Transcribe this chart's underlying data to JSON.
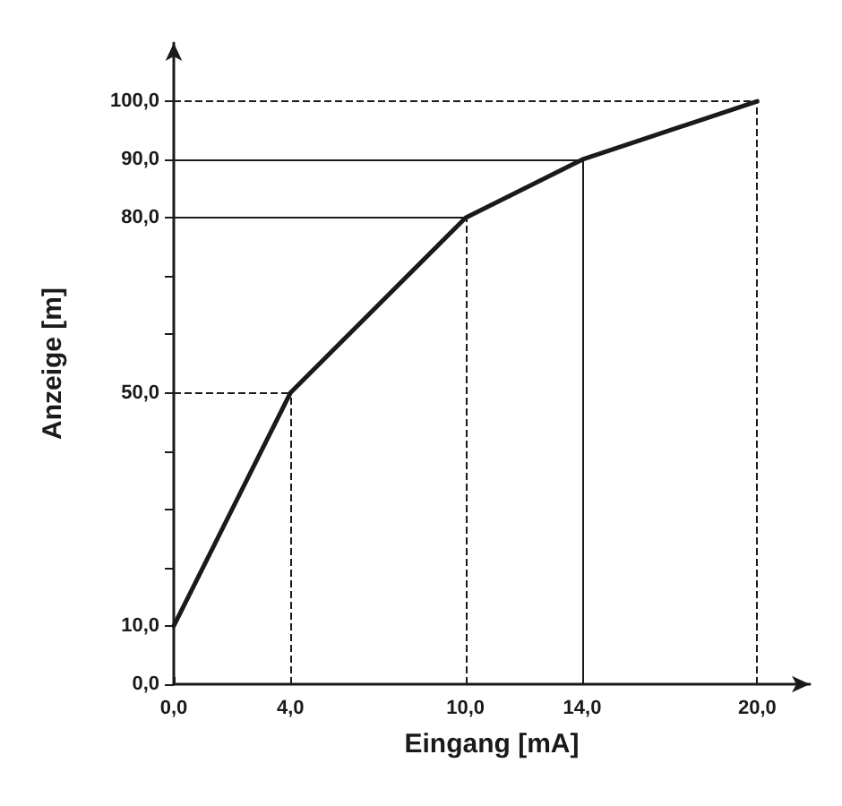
{
  "chart_data": {
    "type": "line",
    "xlabel": "Eingang [mA]",
    "ylabel": "Anzeige [m]",
    "x": [
      0,
      4,
      10,
      14,
      20
    ],
    "series": [
      {
        "color": "#1a1a1a",
        "values": [
          10,
          50,
          80,
          90,
          100
        ]
      }
    ],
    "marker": "none",
    "line_style": "solid",
    "grid": false,
    "xlim": [
      0,
      21.8
    ],
    "ylim": [
      0,
      110
    ],
    "xticks": [
      {
        "value": 0,
        "label": "0,0"
      },
      {
        "value": 4,
        "label": "4,0"
      },
      {
        "value": 10,
        "label": "10,0"
      },
      {
        "value": 14,
        "label": "14,0"
      },
      {
        "value": 20,
        "label": "20,0"
      }
    ],
    "yticks": [
      {
        "value": 0,
        "label": "0,0"
      },
      {
        "value": 10,
        "label": "10,0"
      },
      {
        "value": 20,
        "label": null
      },
      {
        "value": 30,
        "label": null
      },
      {
        "value": 40,
        "label": null
      },
      {
        "value": 50,
        "label": "50,0"
      },
      {
        "value": 60,
        "label": null
      },
      {
        "value": 70,
        "label": null
      },
      {
        "value": 80,
        "label": "80,0"
      },
      {
        "value": 90,
        "label": "90,0"
      },
      {
        "value": 100,
        "label": "100,0"
      }
    ],
    "ref_lines": [
      {
        "axis": "x",
        "value": 4,
        "line_style": "dashed"
      },
      {
        "axis": "x",
        "value": 10,
        "line_style": "dashed"
      },
      {
        "axis": "x",
        "value": 14,
        "line_style": "solid"
      },
      {
        "axis": "x",
        "value": 20,
        "line_style": "dashed"
      },
      {
        "axis": "y",
        "value": 50,
        "line_style": "dashed"
      },
      {
        "axis": "y",
        "value": 80,
        "line_style": "solid"
      },
      {
        "axis": "y",
        "value": 90,
        "line_style": "solid"
      },
      {
        "axis": "y",
        "value": 100,
        "line_style": "dashed"
      }
    ]
  }
}
